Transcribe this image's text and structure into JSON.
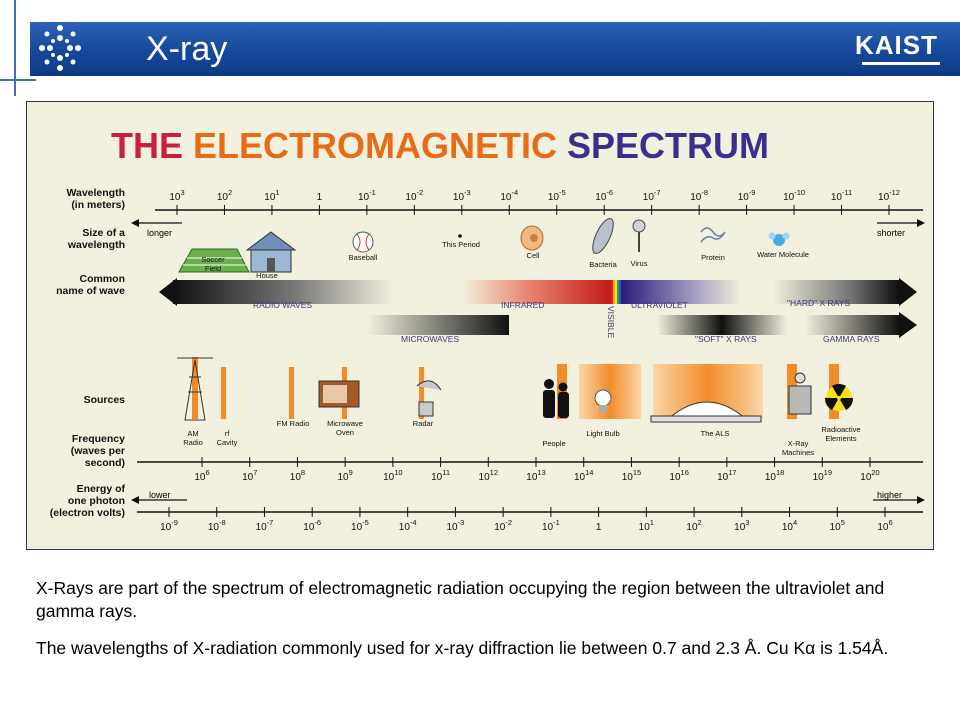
{
  "slide": {
    "title": "X-ray",
    "logo_text": "KAIST",
    "paragraph1": "X-Rays are part of the spectrum of electromagnetic radiation occupying the region between the ultraviolet and gamma rays.",
    "paragraph2": "The wavelengths of X-radiation commonly used for x-ray diffraction lie between 0.7 and 2.3 Å. Cu Kα is 1.54Å."
  },
  "colors": {
    "header_blue": "#16489a",
    "figure_bg": "#f2f0de",
    "orange": "#f28c28"
  },
  "figure": {
    "title_words": [
      {
        "text": "THE",
        "color": "#c8203a"
      },
      {
        "text": "ELECTROMAGNETIC",
        "color": "#e86b18"
      },
      {
        "text": "SPECTRUM",
        "color": "#3a2f8c"
      }
    ],
    "row_labels": {
      "wavelength": [
        "Wavelength",
        "(in meters)"
      ],
      "size": [
        "Size of a",
        "wavelength"
      ],
      "common": [
        "Common",
        "name of wave"
      ],
      "sources": [
        "Sources"
      ],
      "frequency": [
        "Frequency",
        "(waves per",
        "second)"
      ],
      "energy": [
        "Energy of",
        "one photon",
        "(electron volts)"
      ]
    },
    "wavelength_ticks": [
      "10^3",
      "10^2",
      "10^1",
      "1",
      "10^-1",
      "10^-2",
      "10^-3",
      "10^-4",
      "10^-5",
      "10^-6",
      "10^-7",
      "10^-8",
      "10^-9",
      "10^-10",
      "10^-11",
      "10^-12"
    ],
    "longer": "longer",
    "shorter": "shorter",
    "size_objects": [
      "Soccer Field",
      "House",
      "Baseball",
      "This Period",
      "Cell",
      "Bacteria",
      "Virus",
      "Protein",
      "Water Molecule"
    ],
    "wave_names": [
      "RADIO WAVES",
      "INFRARED",
      "VISIBLE",
      "ULTRAVIOLET",
      "\"HARD\" X RAYS",
      "MICROWAVES",
      "\"SOFT\" X RAYS",
      "GAMMA RAYS"
    ],
    "sources": [
      "AM Radio",
      "rf Cavity",
      "FM Radio",
      "Microwave Oven",
      "Radar",
      "People",
      "Light Bulb",
      "The ALS",
      "X-Ray Machines",
      "Radioactive Elements"
    ],
    "frequency_ticks": [
      "10^6",
      "10^7",
      "10^8",
      "10^9",
      "10^10",
      "10^11",
      "10^12",
      "10^13",
      "10^14",
      "10^15",
      "10^16",
      "10^17",
      "10^18",
      "10^19",
      "10^20"
    ],
    "energy_ticks": [
      "10^-9",
      "10^-8",
      "10^-7",
      "10^-6",
      "10^-5",
      "10^-4",
      "10^-3",
      "10^-2",
      "10^-1",
      "1",
      "10^1",
      "10^2",
      "10^3",
      "10^4",
      "10^5",
      "10^6"
    ],
    "lower": "lower",
    "higher": "higher"
  }
}
